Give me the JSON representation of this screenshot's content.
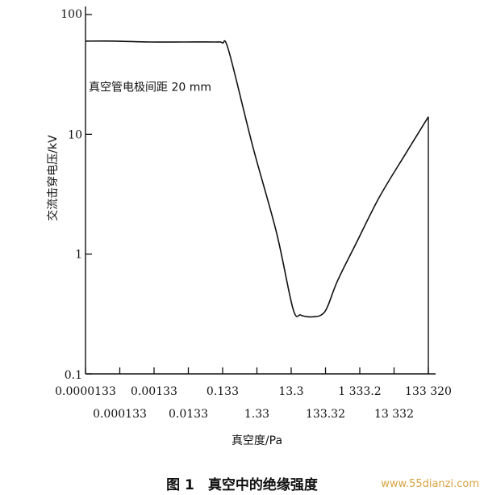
{
  "chart_data": {
    "type": "line",
    "title": "",
    "xlabel": "真空度/Pa",
    "ylabel": "交流击穿电压/kV",
    "yscale": "log",
    "ylim": [
      0.1,
      100
    ],
    "yticks": [
      "100",
      "10",
      "1",
      "0.1"
    ],
    "xscale": "log",
    "xticks_upper": [
      "0.0000133",
      "0.00133",
      "0.133",
      "13.3",
      "1 333.2",
      "133 320"
    ],
    "xticks_lower": [
      "0.000133",
      "0.0133",
      "1.33",
      "133.32",
      "13 332"
    ],
    "x_tick_values": [
      1.33e-05,
      0.000133,
      0.00133,
      0.0133,
      0.133,
      1.33,
      13.3,
      133.32,
      1333.2,
      13332,
      133320
    ],
    "series": [
      {
        "x": [
          1.33e-05,
          0.0001,
          0.001,
          0.01,
          0.08,
          0.13,
          0.2,
          1,
          5,
          15,
          25,
          40,
          60,
          100,
          150,
          300,
          1000,
          5000,
          30000,
          133320
        ],
        "y": [
          60,
          60,
          59,
          59,
          59,
          58,
          50,
          8,
          1.5,
          0.35,
          0.31,
          0.3,
          0.3,
          0.31,
          0.36,
          0.6,
          1.2,
          3,
          7,
          14
        ]
      }
    ],
    "annotations": [
      {
        "text": "真空管电极间距 20 mm",
        "x": 1.33e-05,
        "y": 25
      }
    ],
    "grid": false
  },
  "caption": "图 1　真空中的绝缘强度",
  "watermark": "www.55dianzi.com"
}
